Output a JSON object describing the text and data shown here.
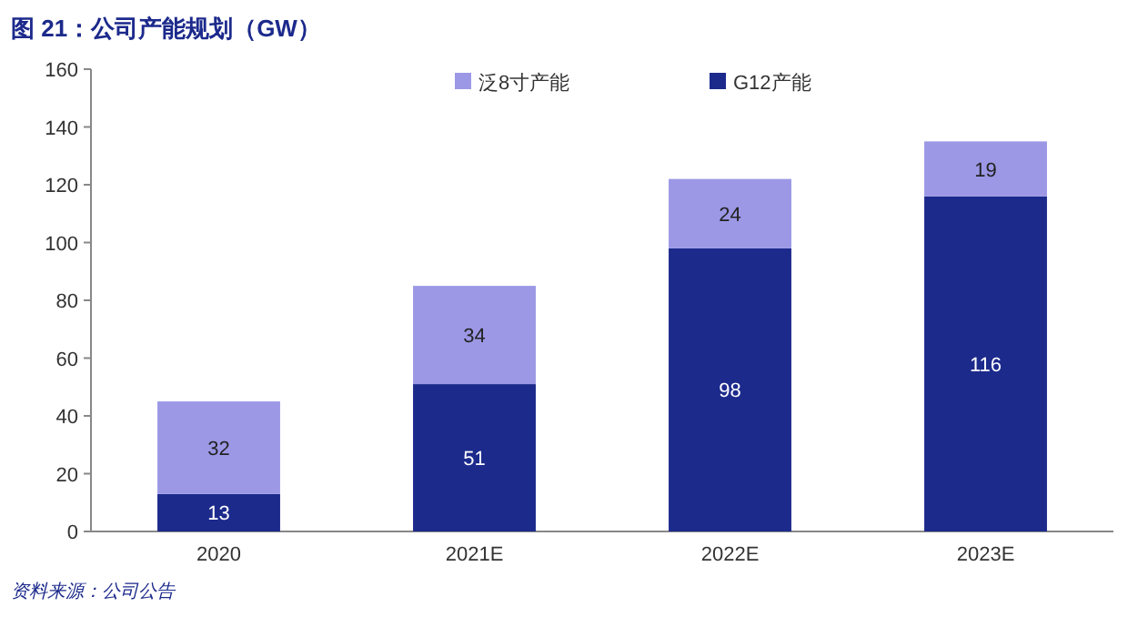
{
  "chart_data": {
    "type": "bar",
    "title": "图 21：公司产能规划（GW）",
    "categories": [
      "2020",
      "2021E",
      "2022E",
      "2023E"
    ],
    "series": [
      {
        "name": "G12产能",
        "color": "#1c2a8c",
        "values": [
          13,
          51,
          98,
          116
        ]
      },
      {
        "name": "泛8寸产能",
        "color": "#9c98e6",
        "values": [
          32,
          34,
          24,
          19
        ]
      }
    ],
    "stacked": true,
    "ylim": [
      0,
      160
    ],
    "yticks": [
      0,
      20,
      40,
      60,
      80,
      100,
      120,
      140,
      160
    ],
    "data_labels": true,
    "legend": "top",
    "grid": false,
    "annotations": [
      "资料来源：公司公告"
    ]
  }
}
